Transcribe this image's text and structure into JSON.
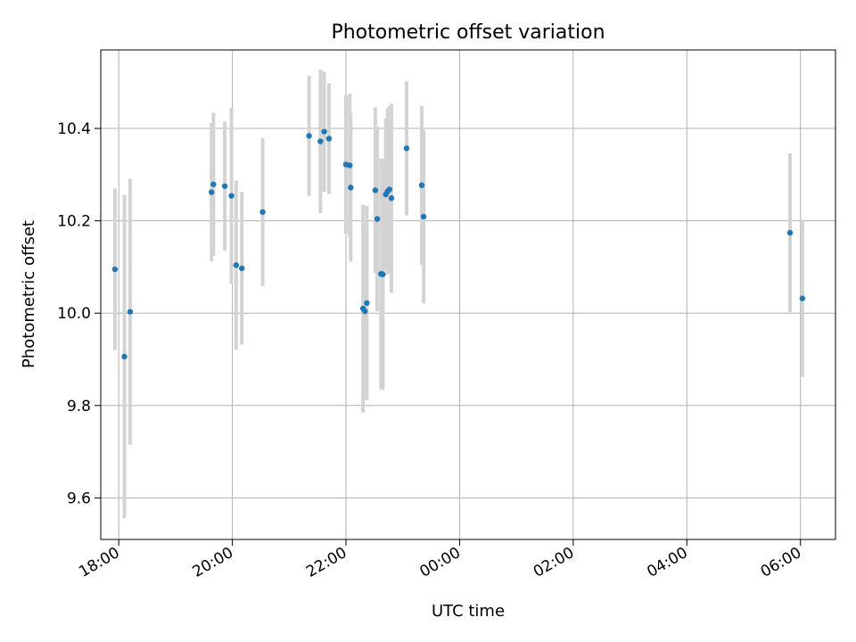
{
  "chart_data": {
    "type": "scatter",
    "title": "Photometric offset variation",
    "xlabel": "UTC time",
    "ylabel": "Photometric offset",
    "x_tick_labels": [
      "18:00",
      "20:00",
      "22:00",
      "00:00",
      "02:00",
      "04:00",
      "06:00"
    ],
    "y_ticks": [
      9.6,
      9.8,
      10.0,
      10.2,
      10.4
    ],
    "y_tick_labels": [
      "9.6",
      "9.8",
      "10.0",
      "10.2",
      "10.4"
    ],
    "x_tick_times": [
      "18:00",
      "20:00",
      "22:00",
      "00:00",
      "02:00",
      "04:00",
      "06:00"
    ],
    "xlim": [
      "17:41",
      "06:37"
    ],
    "ylim": [
      9.51,
      10.57
    ],
    "grid": true,
    "legend": "none",
    "colors": {
      "point": "#1f77b4",
      "errorbar": "#d3d3d3"
    },
    "points": [
      {
        "x": "17:56",
        "y": 10.095,
        "err": 0.175
      },
      {
        "x": "18:06",
        "y": 9.906,
        "err": 0.35
      },
      {
        "x": "18:12",
        "y": 10.003,
        "err": 0.288
      },
      {
        "x": "19:38",
        "y": 10.262,
        "err": 0.15
      },
      {
        "x": "19:40",
        "y": 10.279,
        "err": 0.155
      },
      {
        "x": "19:52",
        "y": 10.275,
        "err": 0.14
      },
      {
        "x": "19:59",
        "y": 10.254,
        "err": 0.19
      },
      {
        "x": "20:04",
        "y": 10.104,
        "err": 0.183
      },
      {
        "x": "20:10",
        "y": 10.097,
        "err": 0.165
      },
      {
        "x": "20:32",
        "y": 10.219,
        "err": 0.16
      },
      {
        "x": "21:21",
        "y": 10.384,
        "err": 0.13
      },
      {
        "x": "21:33",
        "y": 10.372,
        "err": 0.155
      },
      {
        "x": "21:37",
        "y": 10.393,
        "err": 0.13
      },
      {
        "x": "21:42",
        "y": 10.378,
        "err": 0.12
      },
      {
        "x": "22:00",
        "y": 10.322,
        "err": 0.15
      },
      {
        "x": "22:04",
        "y": 10.32,
        "err": 0.155
      },
      {
        "x": "22:05",
        "y": 10.272,
        "err": 0.16
      },
      {
        "x": "22:18",
        "y": 10.01,
        "err": 0.225
      },
      {
        "x": "22:20",
        "y": 10.004,
        "err": 0.19
      },
      {
        "x": "22:22",
        "y": 10.022,
        "err": 0.21
      },
      {
        "x": "22:31",
        "y": 10.266,
        "err": 0.18
      },
      {
        "x": "22:33",
        "y": 10.204,
        "err": 0.2
      },
      {
        "x": "22:37",
        "y": 10.085,
        "err": 0.25
      },
      {
        "x": "22:39",
        "y": 10.084,
        "err": 0.25
      },
      {
        "x": "22:42",
        "y": 10.257,
        "err": 0.165
      },
      {
        "x": "22:44",
        "y": 10.264,
        "err": 0.18
      },
      {
        "x": "22:46",
        "y": 10.268,
        "err": 0.18
      },
      {
        "x": "22:48",
        "y": 10.249,
        "err": 0.205
      },
      {
        "x": "23:04",
        "y": 10.357,
        "err": 0.145
      },
      {
        "x": "23:20",
        "y": 10.277,
        "err": 0.172
      },
      {
        "x": "23:22",
        "y": 10.209,
        "err": 0.188
      },
      {
        "x": "05:49",
        "y": 10.174,
        "err": 0.172
      },
      {
        "x": "06:02",
        "y": 10.032,
        "err": 0.17
      }
    ]
  }
}
